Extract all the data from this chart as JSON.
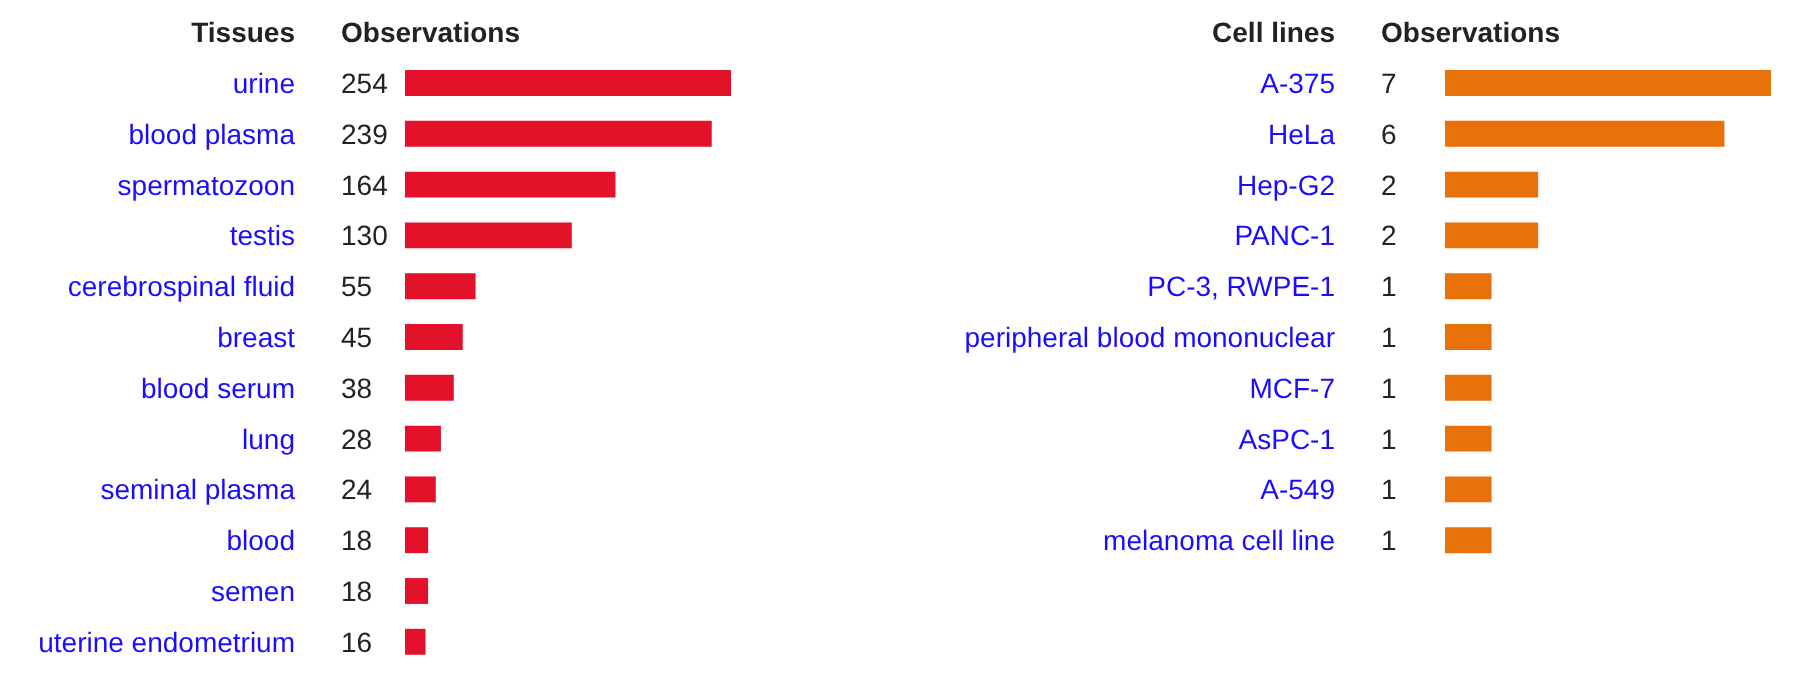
{
  "chart_data": [
    {
      "type": "bar",
      "orientation": "horizontal",
      "ylabel": "Tissues",
      "xlabel": "Observations",
      "categories": [
        "urine",
        "blood plasma",
        "spermatozoon",
        "testis",
        "cerebrospinal fluid",
        "breast",
        "blood serum",
        "lung",
        "seminal plasma",
        "blood",
        "semen",
        "uterine endometrium"
      ],
      "values": [
        254,
        239,
        164,
        130,
        55,
        45,
        38,
        28,
        24,
        18,
        18,
        16
      ],
      "color": "#e4112b",
      "data_labels": true
    },
    {
      "type": "bar",
      "orientation": "horizontal",
      "ylabel": "Cell lines",
      "xlabel": "Observations",
      "categories": [
        "A-375",
        "HeLa",
        "Hep-G2",
        "PANC-1",
        "PC-3, RWPE-1",
        "peripheral blood mononuclear",
        "MCF-7",
        "AsPC-1",
        "A-549",
        "melanoma cell line"
      ],
      "values": [
        7,
        6,
        2,
        2,
        1,
        1,
        1,
        1,
        1,
        1
      ],
      "color": "#e8710a",
      "data_labels": true
    }
  ]
}
